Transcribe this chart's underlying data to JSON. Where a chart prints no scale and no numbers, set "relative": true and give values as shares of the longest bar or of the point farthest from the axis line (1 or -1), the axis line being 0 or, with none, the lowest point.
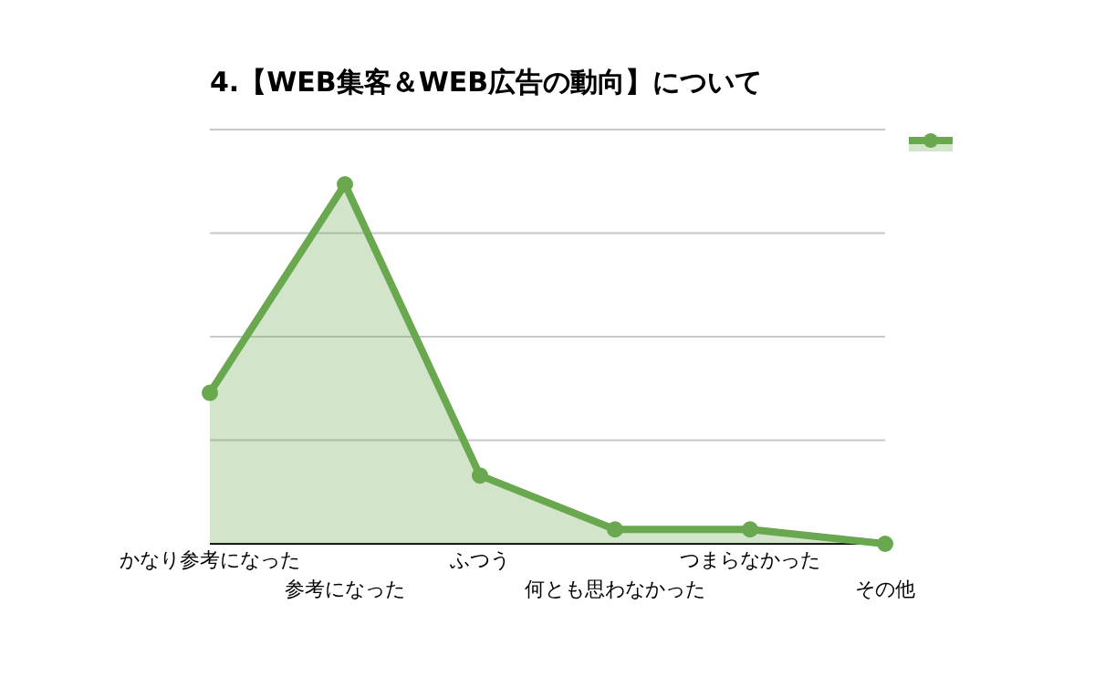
{
  "chart_data": {
    "type": "area",
    "title": "4.【WEB集客＆WEB広告の動向】について",
    "categories": [
      "かなり参考になった",
      "参考になった",
      "ふつう",
      "何とも思わなかった",
      "つまらなかった",
      "その他"
    ],
    "series": [
      {
        "color": "#6aa84f",
        "values": [
          0.42,
          1,
          0.19,
          0.04,
          0.04,
          0
        ]
      }
    ],
    "relative": true,
    "grid": true,
    "marker": "circle"
  }
}
